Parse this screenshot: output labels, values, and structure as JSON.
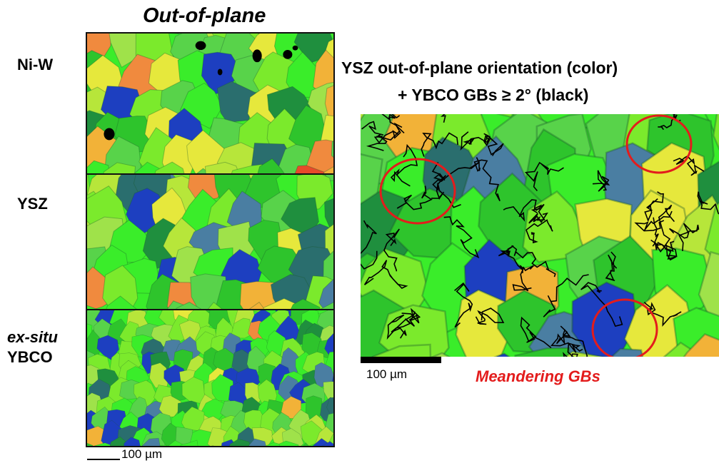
{
  "left_column": {
    "title": "Out-of-plane",
    "row_labels": [
      "Ni-W",
      "YSZ",
      "ex-situ",
      "YBCO"
    ],
    "scale_label": "100 µm"
  },
  "right_panel": {
    "title_line1": "YSZ out-of-plane orientation (color)",
    "title_line2": "+ YBCO GBs ≥ 2° (black)",
    "scale_label": "100 µm",
    "caption": "Meandering GBs",
    "caption_color": "#e31c1c",
    "circle_color": "#e31c1c"
  },
  "colors": {
    "grain_palette": [
      "#3aed2a",
      "#7bea2c",
      "#2ec42c",
      "#1f8f3e",
      "#2a6e6e",
      "#4a7ea2",
      "#1d3fc0",
      "#b7e63a",
      "#e6e83c",
      "#f2b238",
      "#f08a3e",
      "#e84a2a",
      "#58d34a",
      "#9fe24a"
    ],
    "boundary": "#000000"
  }
}
